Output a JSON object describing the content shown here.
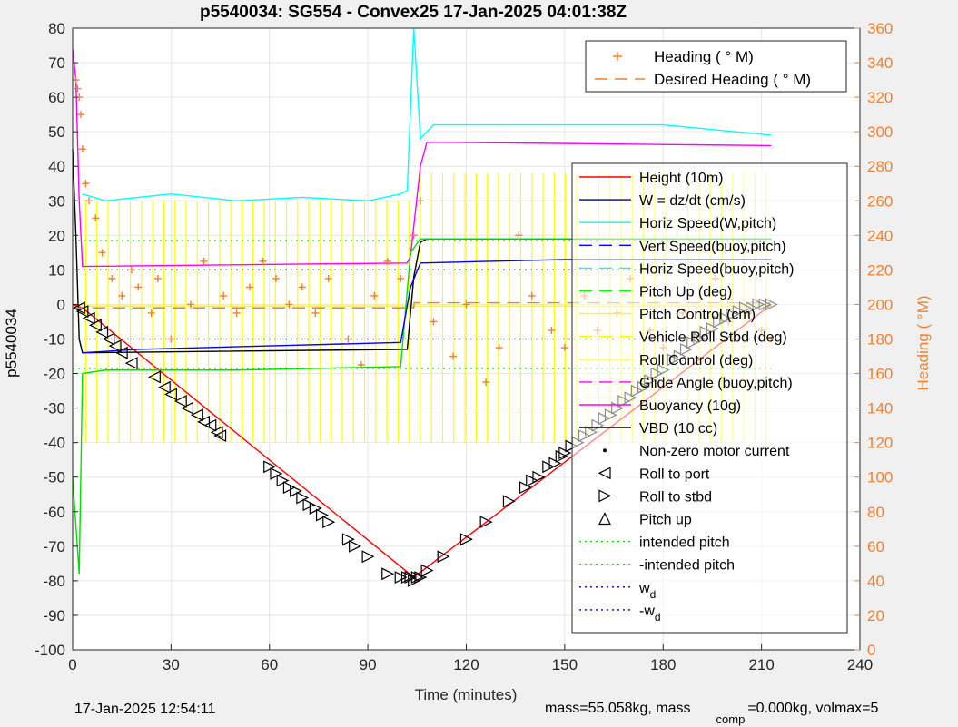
{
  "chart_data": {
    "type": "line",
    "title": "p5540034: SG554 - Convex25 17-Jan-2025 04:01:38Z",
    "xlabel": "Time (minutes)",
    "ylabel": "p5540034",
    "y2label": "Heading (  °M)",
    "xlim": [
      0,
      240
    ],
    "ylim": [
      -100,
      80
    ],
    "y2lim": [
      0,
      360
    ],
    "xticks": [
      "0",
      "30",
      "60",
      "90",
      "120",
      "150",
      "180",
      "210",
      "240"
    ],
    "yticks": [
      "80",
      "70",
      "60",
      "50",
      "40",
      "30",
      "20",
      "10",
      "0",
      "-10",
      "-20",
      "-30",
      "-40",
      "-50",
      "-60",
      "-70",
      "-80",
      "-90",
      "-100"
    ],
    "y2ticks": [
      "360",
      "340",
      "320",
      "300",
      "280",
      "260",
      "240",
      "220",
      "200",
      "180",
      "160",
      "140",
      "120",
      "100",
      "80",
      "60",
      "40",
      "20",
      "0"
    ],
    "grid": true,
    "legend_top": {
      "placement": "top-right",
      "entries": [
        {
          "label": "Heading (  ° M)",
          "color": "#f08030",
          "style": "plus"
        },
        {
          "label": "Desired Heading (    ° M)",
          "color": "#f08030",
          "style": "dash"
        }
      ]
    },
    "legend_main": {
      "placement": "right",
      "entries": [
        {
          "label": "Height (10m)",
          "color": "#ff0000",
          "style": "solid"
        },
        {
          "label": "W = dz/dt (cm/s)",
          "color": "#000080",
          "style": "solid"
        },
        {
          "label": "Horiz Speed(W,pitch)",
          "color": "#00ffff",
          "style": "solid"
        },
        {
          "label": "Vert Speed(buoy,pitch)",
          "color": "#0000ff",
          "style": "dash"
        },
        {
          "label": "Horiz Speed(buoy,pitch)",
          "color": "#00ffff",
          "style": "dash"
        },
        {
          "label": "Pitch Up (deg)",
          "color": "#00ff00",
          "style": "dash"
        },
        {
          "label": "Pitch Control (cm)",
          "color": "#ffff00",
          "style": "solid"
        },
        {
          "label": "Vehicle Roll Stbd (deg)",
          "color": "#ffff00",
          "style": "dash"
        },
        {
          "label": "Roll Control (deg)",
          "color": "#ffff00",
          "style": "solid"
        },
        {
          "label": "Glide Angle (buoy,pitch)",
          "color": "#ff00ff",
          "style": "dash"
        },
        {
          "label": "Buoyancy (10g)",
          "color": "#ff00ff",
          "style": "solid"
        },
        {
          "label": "VBD (10 cc)",
          "color": "#000000",
          "style": "solid"
        },
        {
          "label": "Non-zero motor current",
          "color": "#000000",
          "style": "dot"
        },
        {
          "label": "Roll to port",
          "color": "#000000",
          "style": "tri-left"
        },
        {
          "label": "Roll to stbd",
          "color": "#000000",
          "style": "tri-right"
        },
        {
          "label": "Pitch up",
          "color": "#000000",
          "style": "tri-up"
        },
        {
          "label": "intended pitch",
          "color": "#00e000",
          "style": "dotted"
        },
        {
          "label": "-intended pitch",
          "color": "#00e000",
          "style": "dotted"
        },
        {
          "label": "w",
          "sub": "d",
          "color": "#0000c0",
          "style": "dotted"
        },
        {
          "label": "-w",
          "sub": "d",
          "color": "#0000c0",
          "style": "dotted"
        }
      ]
    },
    "series": [
      {
        "name": "Height (10m)",
        "color": "#ff0000",
        "x": [
          0,
          3,
          104,
          213
        ],
        "y": [
          0,
          -1,
          -79,
          0
        ]
      },
      {
        "name": "Buoyancy (10g)",
        "color": "#ff00ff",
        "x": [
          0,
          1,
          2,
          3,
          102,
          103,
          106,
          108,
          213
        ],
        "y": [
          74,
          65,
          30,
          11,
          12,
          14,
          40,
          47,
          46
        ]
      },
      {
        "name": "VBD (10 cc)",
        "color": "#000000",
        "x": [
          0,
          1,
          2,
          3,
          102,
          104,
          106,
          108,
          213
        ],
        "y": [
          45,
          20,
          -10,
          -14,
          -13,
          8,
          18,
          19,
          19
        ]
      },
      {
        "name": "Horiz Speed(W,pitch)",
        "color": "#00ffff",
        "x": [
          3,
          10,
          30,
          50,
          70,
          90,
          100,
          102,
          104,
          106,
          110,
          150,
          180,
          213
        ],
        "y": [
          32,
          30,
          32,
          30,
          31,
          30,
          32,
          33,
          80,
          48,
          52,
          52,
          52,
          49
        ]
      },
      {
        "name": "Pitch Up (deg)",
        "color": "#00e000",
        "x": [
          0,
          2,
          3,
          10,
          50,
          100,
          103,
          106,
          213
        ],
        "y": [
          -50,
          -78,
          -20,
          -19,
          -19,
          -18,
          15,
          19,
          19
        ]
      },
      {
        "name": "W = dz/dt (cm/s)",
        "color": "#0000ff",
        "x": [
          3,
          20,
          60,
          100,
          103,
          106,
          150,
          213
        ],
        "y": [
          -14,
          -13,
          -12,
          -11,
          5,
          12,
          13,
          13
        ]
      },
      {
        "name": "intended pitch",
        "color": "#00e000",
        "y": 18.5
      },
      {
        "name": "-intended pitch",
        "color": "#00e000",
        "y": -18.5
      },
      {
        "name": "w_d",
        "color": "#0000c0",
        "y": 10
      },
      {
        "name": "-w_d",
        "color": "#0000c0",
        "y": -10
      },
      {
        "name": "Roll to port",
        "marker": "tri-left",
        "x": [
          2,
          3,
          5,
          7,
          9,
          11,
          13,
          15,
          18,
          25,
          28,
          30,
          33,
          35,
          38,
          40,
          42,
          44,
          45
        ],
        "y": [
          -1,
          -2,
          -4,
          -6,
          -8,
          -10,
          -12,
          -14,
          -17,
          -21,
          -24,
          -26,
          -28,
          -30,
          -32,
          -34,
          -35,
          -37,
          -38
        ]
      },
      {
        "name": "Roll to stbd",
        "marker": "tri-right",
        "x": [
          60,
          62,
          64,
          66,
          68,
          70,
          72,
          74,
          76,
          78,
          84,
          86,
          90,
          96,
          100,
          102,
          103,
          104,
          105,
          106,
          108,
          113,
          120,
          126,
          133,
          138,
          140,
          142,
          145,
          147,
          149,
          150,
          152,
          154,
          156,
          158,
          160,
          162,
          164,
          166,
          168,
          170,
          172,
          174,
          176,
          178,
          180,
          183,
          185,
          187,
          189,
          191,
          193,
          195,
          197,
          199,
          201,
          203,
          205,
          207,
          209,
          211,
          213
        ],
        "y": [
          -47,
          -49,
          -51,
          -53,
          -54,
          -56,
          -58,
          -59,
          -61,
          -63,
          -68,
          -70,
          -73,
          -78,
          -79,
          -79,
          -79,
          -80,
          -79,
          -79,
          -77,
          -73,
          -68,
          -63,
          -57,
          -53,
          -51,
          -50,
          -47,
          -46,
          -44,
          -43,
          -41,
          -40,
          -38,
          -37,
          -35,
          -33,
          -32,
          -30,
          -28,
          -27,
          -25,
          -24,
          -22,
          -20,
          -19,
          -16,
          -15,
          -13,
          -11,
          -10,
          -8,
          -7,
          -5,
          -4,
          -3,
          -2,
          -1,
          -1,
          0,
          0,
          0
        ]
      },
      {
        "name": "Heading",
        "color": "#f08030",
        "marker": "plus",
        "axis": "right",
        "x": [
          1,
          1.5,
          2,
          2.5,
          3,
          4,
          5,
          7,
          9,
          12,
          15,
          18,
          20,
          24,
          26,
          30,
          36,
          40,
          46,
          50,
          54,
          58,
          62,
          66,
          70,
          74,
          78,
          84,
          88,
          92,
          96,
          100,
          104,
          106,
          110,
          116,
          120,
          126,
          130,
          136,
          140,
          146,
          150,
          156,
          160,
          166,
          170,
          176,
          180,
          186,
          190,
          196,
          200,
          206,
          210,
          213
        ],
        "y": [
          330,
          325,
          320,
          310,
          290,
          270,
          260,
          250,
          230,
          215,
          205,
          220,
          210,
          195,
          215,
          180,
          200,
          225,
          205,
          195,
          210,
          225,
          215,
          200,
          210,
          195,
          215,
          180,
          165,
          205,
          225,
          215,
          240,
          260,
          190,
          170,
          200,
          155,
          175,
          240,
          205,
          185,
          175,
          205,
          185,
          195,
          215,
          185,
          175,
          195,
          180,
          215,
          190,
          195,
          185,
          180
        ]
      },
      {
        "name": "Desired Heading",
        "color": "#f08030",
        "axis": "right",
        "x": [
          0,
          104,
          104.1,
          213
        ],
        "y": [
          198,
          198,
          201,
          201
        ]
      }
    ],
    "footer_left": "17-Jan-2025 12:54:11",
    "footer_right_a": "mass=55.058kg, mass",
    "footer_right_sub": "comp",
    "footer_right_b": "=0.000kg, volmax=5"
  }
}
